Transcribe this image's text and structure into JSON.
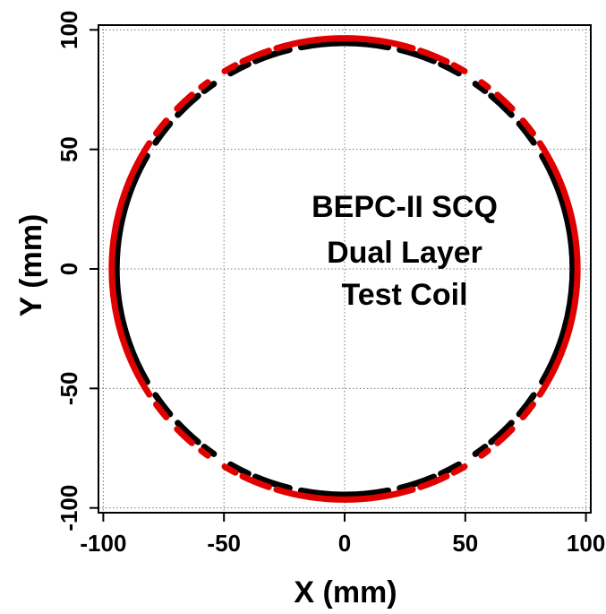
{
  "chart_data": {
    "type": "scatter",
    "title": "",
    "xlabel": "X (mm)",
    "ylabel": "Y (mm)",
    "xlim": [
      -102,
      102
    ],
    "ylim": [
      -102,
      102
    ],
    "xticks": [
      -100,
      -50,
      0,
      50,
      100
    ],
    "yticks": [
      -100,
      -50,
      0,
      50,
      100
    ],
    "xtick_labels": [
      "-100",
      "-50",
      "0",
      "50",
      "100"
    ],
    "ytick_labels": [
      "-100",
      "-50",
      "0",
      "50",
      "100"
    ],
    "grid": true,
    "annotation": [
      "BEPC-II SCQ",
      "Dual Layer",
      "Test Coil"
    ],
    "series": [
      {
        "color": "#000000",
        "radius": 94.5,
        "arcs_deg": [
          [
            -30,
            30
          ],
          [
            34,
            40
          ],
          [
            43,
            50
          ],
          [
            52,
            55
          ],
          [
            60,
            65
          ],
          [
            67,
            76
          ],
          [
            79,
            101
          ],
          [
            104,
            113
          ],
          [
            115,
            120
          ],
          [
            125,
            128
          ],
          [
            130,
            137
          ],
          [
            140,
            146
          ],
          [
            150,
            210
          ],
          [
            214,
            220
          ],
          [
            223,
            230
          ],
          [
            232,
            235
          ],
          [
            240,
            245
          ],
          [
            247,
            256
          ],
          [
            259,
            281
          ],
          [
            284,
            293
          ],
          [
            295,
            300
          ],
          [
            305,
            308
          ],
          [
            310,
            317
          ],
          [
            320,
            326
          ]
        ]
      },
      {
        "color": "#e00000",
        "radius": 96.5,
        "arcs_deg": [
          [
            -33,
            33
          ],
          [
            36,
            40
          ],
          [
            44,
            49
          ],
          [
            52,
            54
          ],
          [
            59,
            62
          ],
          [
            64,
            71
          ],
          [
            73,
            107
          ],
          [
            109,
            116
          ],
          [
            118,
            121
          ],
          [
            126,
            128
          ],
          [
            131,
            136
          ],
          [
            140,
            144
          ],
          [
            147,
            213
          ],
          [
            216,
            220
          ],
          [
            224,
            229
          ],
          [
            232,
            234
          ],
          [
            239,
            242
          ],
          [
            244,
            251
          ],
          [
            253,
            287
          ],
          [
            289,
            296
          ],
          [
            298,
            301
          ],
          [
            306,
            308
          ],
          [
            311,
            316
          ],
          [
            320,
            324
          ]
        ]
      }
    ]
  }
}
